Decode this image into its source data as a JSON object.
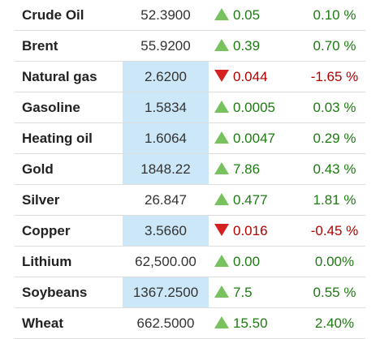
{
  "colors": {
    "up_text": "#1e7a12",
    "down_text": "#b30000",
    "up_arrow": "#78c15f",
    "down_arrow": "#d61f1f",
    "highlight": "#cce7f7"
  },
  "rows": [
    {
      "name": "Crude Oil",
      "price": "52.3900",
      "direction": "up",
      "arrow_icon": "triangle-up-icon",
      "change": "0.05",
      "pct": "0.10 %",
      "highlighted": false
    },
    {
      "name": "Brent",
      "price": "55.9200",
      "direction": "up",
      "arrow_icon": "triangle-up-icon",
      "change": "0.39",
      "pct": "0.70 %",
      "highlighted": false
    },
    {
      "name": "Natural gas",
      "price": "2.6200",
      "direction": "down",
      "arrow_icon": "triangle-down-icon",
      "change": "0.044",
      "pct": "-1.65 %",
      "highlighted": true
    },
    {
      "name": "Gasoline",
      "price": "1.5834",
      "direction": "up",
      "arrow_icon": "triangle-up-icon",
      "change": "0.0005",
      "pct": "0.03 %",
      "highlighted": true
    },
    {
      "name": "Heating oil",
      "price": "1.6064",
      "direction": "up",
      "arrow_icon": "triangle-up-icon",
      "change": "0.0047",
      "pct": "0.29 %",
      "highlighted": true
    },
    {
      "name": "Gold",
      "price": "1848.22",
      "direction": "up",
      "arrow_icon": "triangle-up-icon",
      "change": "7.86",
      "pct": "0.43 %",
      "highlighted": true
    },
    {
      "name": "Silver",
      "price": "26.847",
      "direction": "up",
      "arrow_icon": "triangle-up-icon",
      "change": "0.477",
      "pct": "1.81 %",
      "highlighted": false
    },
    {
      "name": "Copper",
      "price": "3.5660",
      "direction": "down",
      "arrow_icon": "triangle-down-icon",
      "change": "0.016",
      "pct": "-0.45 %",
      "highlighted": true
    },
    {
      "name": "Lithium",
      "price": "62,500.00",
      "direction": "up",
      "arrow_icon": "triangle-up-icon",
      "change": "0.00",
      "pct": "0.00%",
      "highlighted": false
    },
    {
      "name": "Soybeans",
      "price": "1367.2500",
      "direction": "up",
      "arrow_icon": "triangle-up-icon",
      "change": "7.5",
      "pct": "0.55 %",
      "highlighted": true
    },
    {
      "name": "Wheat",
      "price": "662.5000",
      "direction": "up",
      "arrow_icon": "triangle-up-icon",
      "change": "15.50",
      "pct": "2.40%",
      "highlighted": false
    }
  ]
}
